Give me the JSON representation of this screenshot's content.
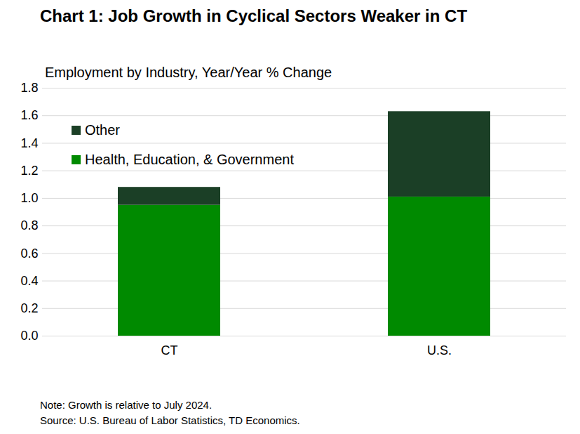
{
  "chart_data": {
    "type": "bar",
    "stacked": true,
    "title": "Chart 1: Job Growth in Cyclical Sectors Weaker in CT",
    "subtitle": "Employment by Industry, Year/Year % Change",
    "categories": [
      "CT",
      "U.S."
    ],
    "series": [
      {
        "name": "Health, Education, & Government",
        "color": "#008a00",
        "values": [
          0.95,
          1.01
        ]
      },
      {
        "name": "Other",
        "color": "#1b3f26",
        "values": [
          0.13,
          0.62
        ]
      }
    ],
    "ylim": [
      0,
      1.8
    ],
    "yticks": [
      {
        "value": 0,
        "label": "0.0"
      },
      0.2,
      0.4,
      0.6,
      0.8,
      {
        "value": 1,
        "label": "1.0"
      },
      1.2,
      1.4,
      1.6,
      1.8
    ],
    "grid": true,
    "legend": "top-left",
    "notes": [
      "Note: Growth is relative to July 2024.",
      "Source: U.S. Bureau of Labor Statistics, TD Economics."
    ]
  }
}
